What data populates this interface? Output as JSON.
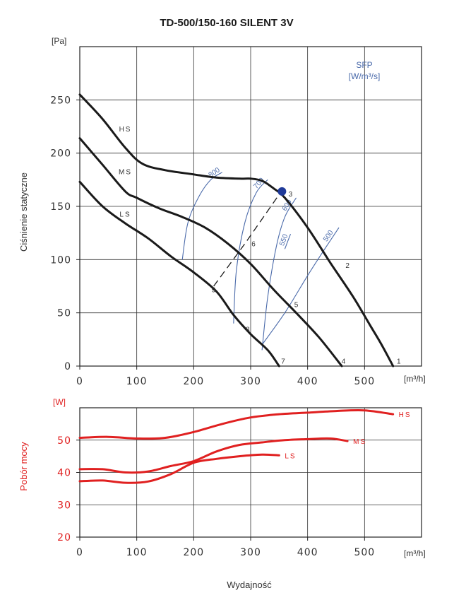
{
  "chart_data": [
    {
      "type": "line",
      "title": "TD-500/150-160 SILENT 3V",
      "ylabel": "Ciśnienie statyczne",
      "y_unit": "[Pa]",
      "x_unit": "[m³/h]",
      "xlim": [
        0,
        600
      ],
      "ylim": [
        0,
        300
      ],
      "x_ticks": [
        0,
        100,
        200,
        300,
        400,
        500
      ],
      "y_ticks": [
        0,
        50,
        100,
        150,
        200,
        250
      ],
      "x_tick_labels": [
        "0",
        "100",
        "200",
        "300",
        "400",
        "500"
      ],
      "y_tick_labels": [
        "0",
        "50",
        "100",
        "150",
        "200",
        "250"
      ],
      "series": [
        {
          "name": "HS",
          "label_at": [
            80,
            223
          ],
          "points": [
            [
              0,
              255
            ],
            [
              40,
              232
            ],
            [
              80,
              205
            ],
            [
              110,
              190
            ],
            [
              150,
              184
            ],
            [
              200,
              180
            ],
            [
              240,
              177
            ],
            [
              280,
              176
            ],
            [
              300,
              176
            ],
            [
              320,
              174
            ],
            [
              340,
              167
            ],
            [
              360,
              158
            ],
            [
              400,
              130
            ],
            [
              440,
              97
            ],
            [
              480,
              65
            ],
            [
              510,
              38
            ],
            [
              530,
              20
            ],
            [
              550,
              0
            ]
          ]
        },
        {
          "name": "MS",
          "label_at": [
            80,
            183
          ],
          "points": [
            [
              0,
              214
            ],
            [
              40,
              189
            ],
            [
              80,
              164
            ],
            [
              100,
              158
            ],
            [
              140,
              148
            ],
            [
              180,
              140
            ],
            [
              220,
              130
            ],
            [
              260,
              115
            ],
            [
              300,
              96
            ],
            [
              340,
              72
            ],
            [
              380,
              50
            ],
            [
              420,
              27
            ],
            [
              460,
              0
            ]
          ]
        },
        {
          "name": "LS",
          "label_at": [
            80,
            143
          ],
          "points": [
            [
              0,
              173
            ],
            [
              40,
              150
            ],
            [
              80,
              134
            ],
            [
              120,
              120
            ],
            [
              160,
              103
            ],
            [
              200,
              88
            ],
            [
              240,
              70
            ],
            [
              270,
              48
            ],
            [
              300,
              30
            ],
            [
              330,
              15
            ],
            [
              350,
              0
            ]
          ]
        }
      ],
      "sfp": {
        "title": "SFP",
        "unit": "[W/m³/s]",
        "lines": [
          {
            "label": "800",
            "points": [
              [
                180,
                100
              ],
              [
                190,
                135
              ],
              [
                210,
                160
              ],
              [
                230,
                175
              ],
              [
                250,
                182
              ]
            ]
          },
          {
            "label": "700",
            "points": [
              [
                270,
                40
              ],
              [
                275,
                90
              ],
              [
                290,
                135
              ],
              [
                310,
                163
              ],
              [
                330,
                175
              ]
            ]
          },
          {
            "label": "600",
            "points": [
              [
                320,
                15
              ],
              [
                330,
                65
              ],
              [
                345,
                112
              ],
              [
                360,
                140
              ],
              [
                380,
                158
              ]
            ]
          },
          {
            "label": "550",
            "points": [
              [
                360,
                110
              ],
              [
                370,
                124
              ]
            ]
          },
          {
            "label": "500",
            "points": [
              [
                320,
                20
              ],
              [
                360,
                50
              ],
              [
                400,
                85
              ],
              [
                430,
                110
              ],
              [
                455,
                130
              ]
            ]
          }
        ]
      },
      "system_line": [
        [
          235,
          75
        ],
        [
          290,
          115
        ],
        [
          355,
          165
        ]
      ],
      "operating_point": {
        "x": 355,
        "y": 164
      },
      "point_labels": [
        {
          "label": "1",
          "x": 560,
          "y": 5
        },
        {
          "label": "2",
          "x": 470,
          "y": 95
        },
        {
          "label": "3",
          "x": 370,
          "y": 162
        },
        {
          "label": "4",
          "x": 463,
          "y": 5
        },
        {
          "label": "5",
          "x": 380,
          "y": 58
        },
        {
          "label": "6",
          "x": 305,
          "y": 115
        },
        {
          "label": "7",
          "x": 357,
          "y": 5
        },
        {
          "label": "8",
          "x": 295,
          "y": 35
        },
        {
          "label": "9",
          "x": 235,
          "y": 72
        }
      ]
    },
    {
      "type": "line",
      "ylabel": "Pobór mocy",
      "y_unit": "[W]",
      "x_unit": "[m³/h]",
      "xlabel": "Wydajność",
      "xlim": [
        0,
        600
      ],
      "ylim": [
        20,
        60
      ],
      "x_ticks": [
        0,
        100,
        200,
        300,
        400,
        500
      ],
      "y_ticks": [
        20,
        30,
        40,
        50
      ],
      "x_tick_labels": [
        "0",
        "100",
        "200",
        "300",
        "400",
        "500"
      ],
      "y_tick_labels": [
        "20",
        "30",
        "40",
        "50"
      ],
      "series": [
        {
          "name": "HS",
          "points": [
            [
              0,
              50.7
            ],
            [
              50,
              51
            ],
            [
              100,
              50.5
            ],
            [
              150,
              50.7
            ],
            [
              200,
              52.5
            ],
            [
              250,
              55
            ],
            [
              300,
              57
            ],
            [
              350,
              58
            ],
            [
              400,
              58.5
            ],
            [
              450,
              59
            ],
            [
              500,
              59.2
            ],
            [
              550,
              58
            ]
          ]
        },
        {
          "name": "MS",
          "points": [
            [
              0,
              41
            ],
            [
              40,
              41
            ],
            [
              80,
              40
            ],
            [
              120,
              40.3
            ],
            [
              160,
              42
            ],
            [
              200,
              43.5
            ],
            [
              240,
              46.5
            ],
            [
              280,
              48.5
            ],
            [
              320,
              49.3
            ],
            [
              360,
              50
            ],
            [
              400,
              50.3
            ],
            [
              440,
              50.5
            ],
            [
              470,
              49.7
            ]
          ]
        },
        {
          "name": "LS",
          "points": [
            [
              0,
              37.3
            ],
            [
              40,
              37.5
            ],
            [
              80,
              36.8
            ],
            [
              120,
              37.2
            ],
            [
              160,
              39.5
            ],
            [
              200,
              43
            ],
            [
              240,
              44.2
            ],
            [
              280,
              45
            ],
            [
              320,
              45.5
            ],
            [
              350,
              45.3
            ]
          ]
        }
      ]
    }
  ]
}
